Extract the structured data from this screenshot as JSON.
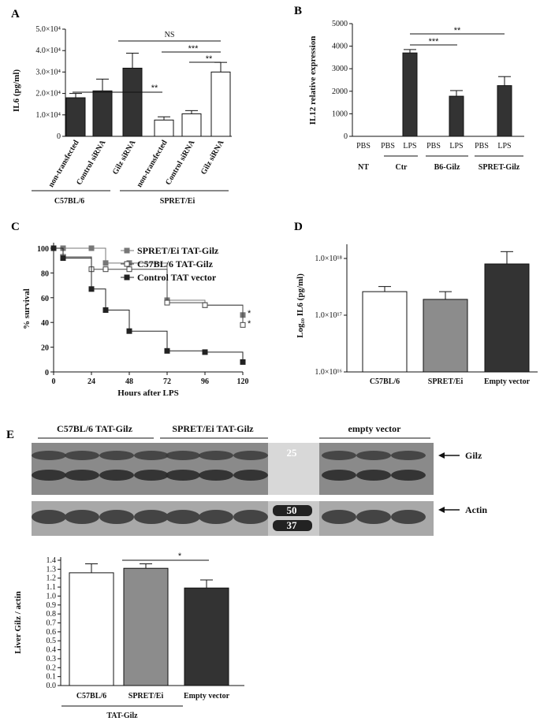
{
  "panels": {
    "A": "A",
    "B": "B",
    "C": "C",
    "D": "D",
    "E": "E"
  },
  "chart_data": [
    {
      "id": "A",
      "type": "bar",
      "ylabel": "IL6 (pg/ml)",
      "yticks": [
        "0",
        "1.0×10⁴",
        "2.0×10⁴",
        "3.0×10⁴",
        "4.0×10⁴",
        "5.0×10⁴"
      ],
      "ylim": [
        0,
        50000
      ],
      "categories": [
        "non-transfected",
        "Control siRNA",
        "Gilz siRNA",
        "non-transfected",
        "Control siRNA",
        "Gilz siRNA"
      ],
      "values": [
        18000,
        21200,
        31800,
        7600,
        10500,
        30000
      ],
      "errors": [
        2000,
        5500,
        7000,
        1500,
        1500,
        4500
      ],
      "groups": [
        "C57BL/6",
        "SPRET/Ei"
      ],
      "significance": [
        "**",
        "NS",
        "***",
        "**"
      ]
    },
    {
      "id": "B",
      "type": "bar",
      "ylabel": "IL12 relative expression",
      "yticks": [
        "0",
        "1000",
        "2000",
        "3000",
        "4000",
        "5000"
      ],
      "ylim": [
        0,
        5000
      ],
      "categories": [
        "PBS",
        "PBS",
        "LPS",
        "PBS",
        "LPS",
        "PBS",
        "LPS"
      ],
      "values": [
        0,
        0,
        3700,
        0,
        1780,
        0,
        2250
      ],
      "errors": [
        0,
        0,
        150,
        0,
        250,
        0,
        400
      ],
      "groups": [
        "NT",
        "Ctr",
        "B6-Gilz",
        "SPRET-Gilz"
      ],
      "significance": [
        "***",
        "**"
      ]
    },
    {
      "id": "C",
      "type": "line",
      "xlabel": "Hours after LPS",
      "ylabel": "% survival",
      "xticks": [
        "0",
        "24",
        "48",
        "72",
        "96",
        "120"
      ],
      "yticks": [
        "0",
        "20",
        "40",
        "60",
        "80",
        "100"
      ],
      "xlim": [
        0,
        120
      ],
      "ylim": [
        0,
        100
      ],
      "series": [
        {
          "name": "SPRET/Ei TAT-Gilz",
          "x": [
            0,
            6,
            24,
            33,
            48,
            72,
            96,
            120
          ],
          "y": [
            100,
            100,
            100,
            88,
            88,
            58,
            54,
            46
          ]
        },
        {
          "name": "C57BL/6 TAT-Gilz",
          "x": [
            0,
            6,
            24,
            33,
            48,
            72,
            96,
            120
          ],
          "y": [
            100,
            93,
            83,
            83,
            83,
            56,
            54,
            38
          ]
        },
        {
          "name": "Control TAT vector",
          "x": [
            0,
            6,
            24,
            33,
            48,
            72,
            96,
            120
          ],
          "y": [
            100,
            92,
            67,
            50,
            33,
            17,
            16,
            8
          ]
        }
      ],
      "significance": [
        "*",
        "*"
      ]
    },
    {
      "id": "D",
      "type": "bar",
      "ylabel": "Log₁₀ IL6 (pg/ml)",
      "yticks": [
        "1.0×10¹⁶",
        "1.0×10¹⁷",
        "1.0×10¹⁸"
      ],
      "scale": "log",
      "categories": [
        "C57BL/6",
        "SPRET/Ei",
        "Empty vector"
      ],
      "values": [
        2.6e+17,
        1.9e+17,
        8e+17
      ],
      "errors": [
        6e+16,
        7e+16,
        5.2e+17
      ]
    },
    {
      "id": "E",
      "type": "bar",
      "ylabel": "Liver Gilz / actin",
      "yticks": [
        "0.0",
        "0.1",
        "0.2",
        "0.3",
        "0.4",
        "0.5",
        "0.6",
        "0.7",
        "0.8",
        "0.9",
        "1.0",
        "1.1",
        "1.2",
        "1.3",
        "1.4"
      ],
      "ylim": [
        0,
        1.4
      ],
      "categories": [
        "C57BL/6",
        "SPRET/Ei",
        "Empty vector"
      ],
      "values": [
        1.26,
        1.31,
        1.09
      ],
      "errors": [
        0.1,
        0.05,
        0.09
      ],
      "groups": [
        "TAT-Gilz"
      ],
      "significance": [
        "*"
      ]
    }
  ],
  "blot": {
    "groups": [
      "C57BL/6 TAT-Gilz",
      "SPRET/Ei TAT-Gilz",
      "empty vector"
    ],
    "markers": [
      "25",
      "50",
      "37"
    ],
    "bands": [
      "Gilz",
      "Actin"
    ]
  },
  "colors": {
    "dark": "#333333",
    "gray": "#8c8c8c",
    "white": "#ffffff"
  }
}
